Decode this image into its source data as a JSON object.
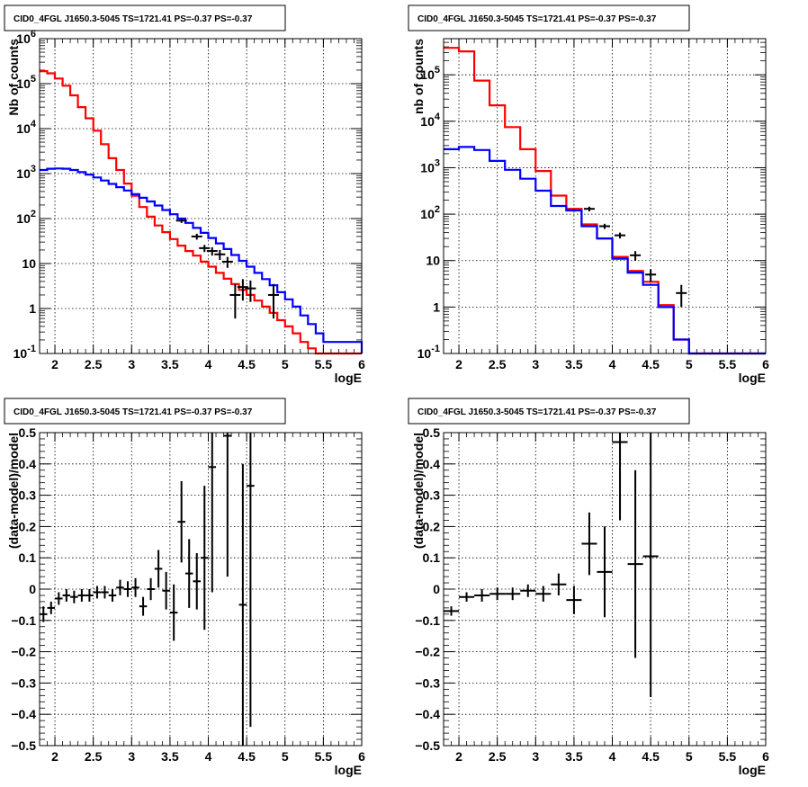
{
  "chart_data": [
    {
      "type": "histogram",
      "title": "CID0_4FGL J1650.3-5045 TS=1721.41 PS=-0.37 PS=-0.37",
      "xlabel": "logE",
      "ylabel": "Nb of counts",
      "xlim": [
        1.8,
        6.0
      ],
      "ylim": [
        0.1,
        1000000
      ],
      "yscale": "log",
      "grid": true,
      "x_ticks": [
        "2",
        "2.5",
        "3",
        "3.5",
        "4",
        "4.5",
        "5",
        "5.5",
        "6"
      ],
      "y_ticks": [
        "10^-1",
        "1",
        "10",
        "10^2",
        "10^3",
        "10^4",
        "10^5",
        "10^6"
      ],
      "bin_edges": [
        1.8,
        1.9,
        2.0,
        2.1,
        2.2,
        2.3,
        2.4,
        2.5,
        2.6,
        2.7,
        2.8,
        2.9,
        3.0,
        3.1,
        3.2,
        3.3,
        3.4,
        3.5,
        3.6,
        3.7,
        3.8,
        3.9,
        4.0,
        4.1,
        4.2,
        4.3,
        4.4,
        4.5,
        4.6,
        4.7,
        4.8,
        4.9,
        5.0,
        5.1,
        5.2,
        5.3,
        5.4,
        5.5,
        6.0
      ],
      "series": [
        {
          "color": "#ff0000",
          "values": [
            190000,
            170000,
            130000,
            90000,
            55000,
            30000,
            17000,
            9000,
            4500,
            2200,
            1200,
            600,
            320,
            180,
            110,
            70,
            50,
            35,
            25,
            19,
            15,
            11,
            8.5,
            6.2,
            4.6,
            3.5,
            2.6,
            2.0,
            1.5,
            1.1,
            0.8,
            0.55,
            0.4,
            0.28,
            0.18,
            0.13,
            0.1,
            0.1
          ]
        },
        {
          "color": "#0000ff",
          "values": [
            1200,
            1280,
            1300,
            1280,
            1200,
            1080,
            950,
            820,
            700,
            590,
            500,
            420,
            350,
            290,
            240,
            195,
            155,
            125,
            100,
            80,
            62,
            48,
            37,
            28,
            21,
            15.5,
            11.5,
            8.5,
            6.2,
            4.5,
            3.3,
            2.3,
            1.6,
            1.1,
            0.7,
            0.45,
            0.28,
            0.18,
            0.1
          ]
        }
      ],
      "data_points": [
        {
          "x": 3.65,
          "y": 90,
          "ylo": 80,
          "yhi": 100
        },
        {
          "x": 3.85,
          "y": 40,
          "ylo": 34,
          "yhi": 46
        },
        {
          "x": 3.95,
          "y": 22,
          "ylo": 18,
          "yhi": 26
        },
        {
          "x": 4.05,
          "y": 19,
          "ylo": 15,
          "yhi": 23
        },
        {
          "x": 4.15,
          "y": 16,
          "ylo": 12,
          "yhi": 20
        },
        {
          "x": 4.25,
          "y": 11,
          "ylo": 8,
          "yhi": 14
        },
        {
          "x": 4.35,
          "y": 2,
          "ylo": 0.6,
          "yhi": 3.5
        },
        {
          "x": 4.45,
          "y": 3,
          "ylo": 1.5,
          "yhi": 4.5
        },
        {
          "x": 4.55,
          "y": 2.8,
          "ylo": 1.4,
          "yhi": 4.2
        },
        {
          "x": 4.85,
          "y": 2,
          "ylo": 0.6,
          "yhi": 3.5
        }
      ]
    },
    {
      "type": "histogram",
      "title": "CID0_4FGL J1650.3-5045 TS=1721.41 PS=-0.37 PS=-0.37",
      "xlabel": "logE",
      "ylabel": "nb of counts",
      "xlim": [
        1.8,
        6.0
      ],
      "ylim": [
        0.1,
        600000
      ],
      "yscale": "log",
      "grid": true,
      "x_ticks": [
        "2",
        "2.5",
        "3",
        "3.5",
        "4",
        "4.5",
        "5",
        "5.5",
        "6"
      ],
      "y_ticks": [
        "10^-1",
        "1",
        "10",
        "10^2",
        "10^3",
        "10^4",
        "10^5"
      ],
      "bin_edges": [
        1.8,
        2.0,
        2.2,
        2.4,
        2.6,
        2.8,
        3.0,
        3.2,
        3.4,
        3.6,
        3.8,
        4.0,
        4.2,
        4.4,
        4.6,
        4.8,
        5.0,
        5.2,
        5.4,
        5.6,
        6.0
      ],
      "series": [
        {
          "color": "#ff0000",
          "values": [
            380000,
            320000,
            75000,
            22000,
            7500,
            2500,
            850,
            250,
            130,
            60,
            30,
            12,
            6,
            3.5,
            1.1,
            0.2,
            0.1,
            0.1,
            0.1,
            0.1
          ]
        },
        {
          "color": "#0000ff",
          "values": [
            2500,
            2800,
            2400,
            1400,
            900,
            580,
            320,
            150,
            120,
            55,
            30,
            11,
            5.5,
            3,
            1,
            0.2,
            0.1,
            0.1,
            0.1,
            0.1
          ]
        }
      ],
      "data_points": [
        {
          "x": 3.7,
          "y": 130,
          "ylo": 115,
          "yhi": 145
        },
        {
          "x": 3.9,
          "y": 55,
          "ylo": 48,
          "yhi": 62
        },
        {
          "x": 4.1,
          "y": 35,
          "ylo": 30,
          "yhi": 40
        },
        {
          "x": 4.3,
          "y": 13,
          "ylo": 10,
          "yhi": 16
        },
        {
          "x": 4.5,
          "y": 5,
          "ylo": 3.5,
          "yhi": 6.5
        },
        {
          "x": 4.9,
          "y": 2,
          "ylo": 1.0,
          "yhi": 3.0
        }
      ]
    },
    {
      "type": "scatter",
      "title": "CID0_4FGL J1650.3-5045 TS=1721.41 PS=-0.37 PS=-0.37",
      "xlabel": "logE",
      "ylabel": "(data-model)/model",
      "xlim": [
        1.8,
        6.0
      ],
      "ylim": [
        -0.5,
        0.5
      ],
      "grid": true,
      "x_ticks": [
        "2",
        "2.5",
        "3",
        "3.5",
        "4",
        "4.5",
        "5",
        "5.5",
        "6"
      ],
      "y_ticks": [
        "−0.5",
        "−0.4",
        "−0.3",
        "−0.2",
        "−0.1",
        "0",
        "0.1",
        "0.2",
        "0.3",
        "0.4",
        "0.5"
      ],
      "points": [
        {
          "x": 1.85,
          "y": -0.08,
          "err": 0.025,
          "xerr": 0.05
        },
        {
          "x": 1.95,
          "y": -0.06,
          "err": 0.02,
          "xerr": 0.05
        },
        {
          "x": 2.05,
          "y": -0.03,
          "err": 0.02,
          "xerr": 0.05
        },
        {
          "x": 2.15,
          "y": -0.02,
          "err": 0.02,
          "xerr": 0.05
        },
        {
          "x": 2.25,
          "y": -0.025,
          "err": 0.02,
          "xerr": 0.05
        },
        {
          "x": 2.35,
          "y": -0.02,
          "err": 0.02,
          "xerr": 0.05
        },
        {
          "x": 2.45,
          "y": -0.02,
          "err": 0.02,
          "xerr": 0.05
        },
        {
          "x": 2.55,
          "y": -0.01,
          "err": 0.02,
          "xerr": 0.05
        },
        {
          "x": 2.65,
          "y": -0.01,
          "err": 0.02,
          "xerr": 0.05
        },
        {
          "x": 2.75,
          "y": -0.02,
          "err": 0.02,
          "xerr": 0.05
        },
        {
          "x": 2.85,
          "y": 0.005,
          "err": 0.025,
          "xerr": 0.05
        },
        {
          "x": 2.95,
          "y": 0.0,
          "err": 0.025,
          "xerr": 0.05
        },
        {
          "x": 3.05,
          "y": 0.005,
          "err": 0.03,
          "xerr": 0.05
        },
        {
          "x": 3.15,
          "y": -0.055,
          "err": 0.03,
          "xerr": 0.05
        },
        {
          "x": 3.25,
          "y": 0.0,
          "err": 0.035,
          "xerr": 0.05
        },
        {
          "x": 3.35,
          "y": 0.065,
          "err": 0.06,
          "xerr": 0.05
        },
        {
          "x": 3.45,
          "y": -0.005,
          "err": 0.06,
          "xerr": 0.05
        },
        {
          "x": 3.55,
          "y": -0.075,
          "err": 0.09,
          "xerr": 0.05
        },
        {
          "x": 3.65,
          "y": 0.215,
          "err": 0.13,
          "xerr": 0.05
        },
        {
          "x": 3.75,
          "y": 0.05,
          "err": 0.11,
          "xerr": 0.05
        },
        {
          "x": 3.85,
          "y": 0.025,
          "err": 0.09,
          "xerr": 0.05
        },
        {
          "x": 3.95,
          "y": 0.1,
          "err": 0.23,
          "xerr": 0.05
        },
        {
          "x": 4.05,
          "y": 0.39,
          "err": 0.4,
          "xerr": 0.05
        },
        {
          "x": 4.25,
          "y": 0.49,
          "err": 0.45,
          "xerr": 0.05
        },
        {
          "x": 4.45,
          "y": -0.05,
          "err": 0.45,
          "xerr": 0.05
        },
        {
          "x": 4.55,
          "y": 0.33,
          "err": 0.77,
          "xerr": 0.05
        }
      ]
    },
    {
      "type": "scatter",
      "title": "CID0_4FGL J1650.3-5045 TS=1721.41 PS=-0.37 PS=-0.37",
      "xlabel": "logE",
      "ylabel": "(data-model)/model",
      "xlim": [
        1.8,
        6.0
      ],
      "ylim": [
        -0.5,
        0.5
      ],
      "grid": true,
      "x_ticks": [
        "2",
        "2.5",
        "3",
        "3.5",
        "4",
        "4.5",
        "5",
        "5.5",
        "6"
      ],
      "y_ticks": [
        "−0.5",
        "−0.4",
        "−0.3",
        "−0.2",
        "−0.1",
        "0",
        "0.1",
        "0.2",
        "0.3",
        "0.4",
        "0.5"
      ],
      "points": [
        {
          "x": 1.9,
          "y": -0.07,
          "err": 0.015,
          "xerr": 0.1
        },
        {
          "x": 2.1,
          "y": -0.025,
          "err": 0.015,
          "xerr": 0.1
        },
        {
          "x": 2.3,
          "y": -0.02,
          "err": 0.02,
          "xerr": 0.1
        },
        {
          "x": 2.5,
          "y": -0.015,
          "err": 0.02,
          "xerr": 0.1
        },
        {
          "x": 2.7,
          "y": -0.015,
          "err": 0.02,
          "xerr": 0.1
        },
        {
          "x": 2.9,
          "y": -0.005,
          "err": 0.02,
          "xerr": 0.1
        },
        {
          "x": 3.1,
          "y": -0.015,
          "err": 0.025,
          "xerr": 0.1
        },
        {
          "x": 3.3,
          "y": 0.015,
          "err": 0.035,
          "xerr": 0.1
        },
        {
          "x": 3.5,
          "y": -0.035,
          "err": 0.045,
          "xerr": 0.1
        },
        {
          "x": 3.7,
          "y": 0.145,
          "err": 0.1,
          "xerr": 0.1
        },
        {
          "x": 3.9,
          "y": 0.055,
          "err": 0.145,
          "xerr": 0.1
        },
        {
          "x": 4.1,
          "y": 0.47,
          "err": 0.25,
          "xerr": 0.1
        },
        {
          "x": 4.3,
          "y": 0.08,
          "err": 0.3,
          "xerr": 0.1
        },
        {
          "x": 4.5,
          "y": 0.105,
          "err": 0.45,
          "xerr": 0.1
        }
      ]
    }
  ]
}
